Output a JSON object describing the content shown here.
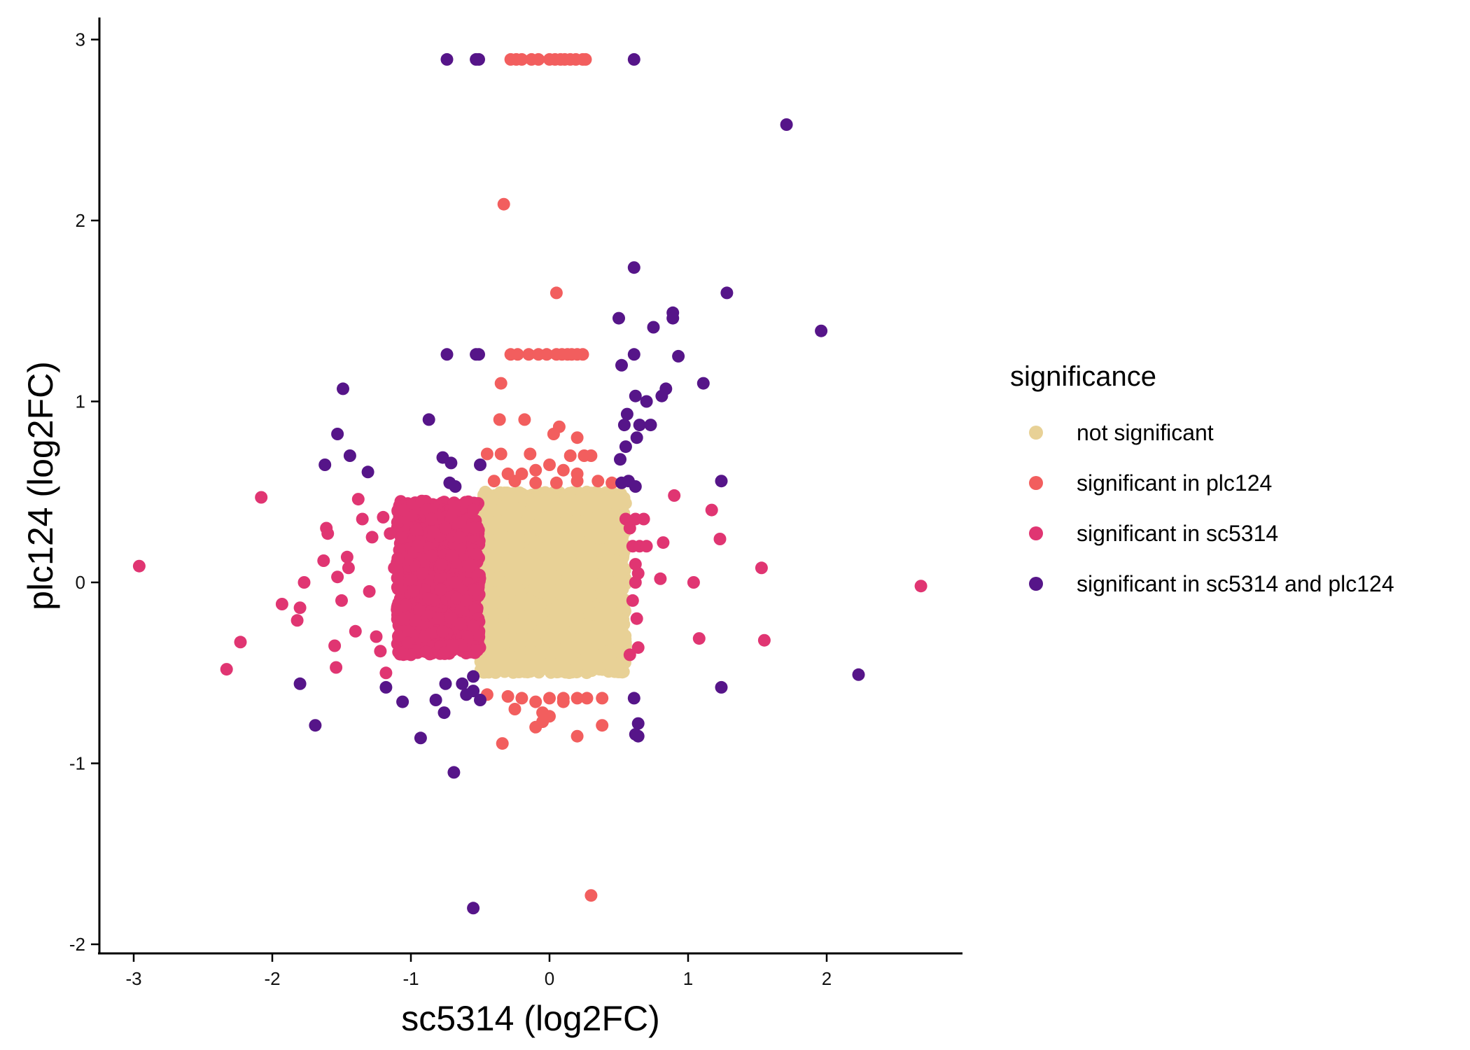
{
  "chart_data": {
    "type": "scatter",
    "xlabel": "sc5314 (log2FC)",
    "ylabel": "plc124 (log2FC)",
    "xlim": [
      -3.25,
      3.0
    ],
    "ylim": [
      -2.05,
      3.12
    ],
    "x_ticks": [
      -3,
      -2,
      -1,
      0,
      1,
      2
    ],
    "y_ticks": [
      -2,
      -1,
      0,
      1,
      2,
      3
    ],
    "x_tick_labels": [
      "-3",
      "-2",
      "-1",
      "0",
      "1",
      "2"
    ],
    "y_tick_labels": [
      "-2",
      "-1",
      "0",
      "1",
      "2",
      "3"
    ],
    "grid": false,
    "legend": {
      "title": "significance",
      "position": "right"
    },
    "series": [
      {
        "name": "not significant",
        "color": "#E8D196",
        "dense_region": {
          "x": [
            -0.5,
            0.55
          ],
          "y": [
            -0.5,
            0.5
          ]
        },
        "points": [
          [
            0.0,
            0.0
          ],
          [
            0.1,
            0.2
          ],
          [
            -0.2,
            -0.3
          ],
          [
            0.3,
            0.35
          ],
          [
            0.45,
            0.0
          ],
          [
            -0.4,
            0.4
          ],
          [
            0.2,
            -0.45
          ],
          [
            -0.3,
            -0.1
          ],
          [
            0.35,
            -0.3
          ],
          [
            0.4,
            -0.3
          ],
          [
            0.36,
            -0.48
          ],
          [
            0.15,
            -0.49
          ],
          [
            -0.45,
            0.47
          ],
          [
            0.5,
            0.44
          ],
          [
            0.5,
            -0.2
          ],
          [
            -0.1,
            0.1
          ],
          [
            0.05,
            -0.2
          ],
          [
            -0.35,
            0.2
          ]
        ]
      },
      {
        "name": "significant in plc124",
        "color": "#F25E5E",
        "points": [
          [
            -0.28,
            2.89
          ],
          [
            -0.24,
            2.89
          ],
          [
            -0.2,
            2.89
          ],
          [
            -0.13,
            2.89
          ],
          [
            -0.08,
            2.89
          ],
          [
            0.0,
            2.89
          ],
          [
            0.04,
            2.89
          ],
          [
            0.08,
            2.89
          ],
          [
            0.11,
            2.89
          ],
          [
            0.15,
            2.89
          ],
          [
            0.19,
            2.89
          ],
          [
            0.24,
            2.89
          ],
          [
            0.26,
            2.89
          ],
          [
            -0.33,
            2.09
          ],
          [
            0.05,
            1.6
          ],
          [
            -0.28,
            1.26
          ],
          [
            -0.23,
            1.26
          ],
          [
            -0.15,
            1.26
          ],
          [
            -0.08,
            1.26
          ],
          [
            -0.02,
            1.26
          ],
          [
            0.05,
            1.26
          ],
          [
            0.09,
            1.26
          ],
          [
            0.13,
            1.26
          ],
          [
            0.16,
            1.26
          ],
          [
            0.2,
            1.26
          ],
          [
            0.24,
            1.26
          ],
          [
            -0.35,
            1.1
          ],
          [
            -0.36,
            0.9
          ],
          [
            -0.18,
            0.9
          ],
          [
            0.07,
            0.86
          ],
          [
            0.03,
            0.82
          ],
          [
            0.2,
            0.8
          ],
          [
            -0.45,
            0.71
          ],
          [
            -0.35,
            0.71
          ],
          [
            -0.14,
            0.71
          ],
          [
            0.15,
            0.7
          ],
          [
            0.25,
            0.7
          ],
          [
            0.3,
            0.7
          ],
          [
            -0.3,
            0.6
          ],
          [
            -0.2,
            0.6
          ],
          [
            -0.1,
            0.62
          ],
          [
            0.0,
            0.65
          ],
          [
            0.1,
            0.62
          ],
          [
            0.2,
            0.6
          ],
          [
            -0.4,
            0.56
          ],
          [
            -0.25,
            0.56
          ],
          [
            -0.1,
            0.55
          ],
          [
            0.05,
            0.55
          ],
          [
            0.2,
            0.56
          ],
          [
            0.35,
            0.56
          ],
          [
            0.45,
            0.55
          ],
          [
            -0.45,
            -0.62
          ],
          [
            -0.3,
            -0.63
          ],
          [
            -0.2,
            -0.64
          ],
          [
            -0.1,
            -0.66
          ],
          [
            0.0,
            -0.64
          ],
          [
            0.1,
            -0.64
          ],
          [
            0.2,
            -0.64
          ],
          [
            0.27,
            -0.64
          ],
          [
            0.38,
            -0.64
          ],
          [
            -0.25,
            -0.7
          ],
          [
            -0.05,
            -0.72
          ],
          [
            0.1,
            -0.66
          ],
          [
            -0.05,
            -0.77
          ],
          [
            0.0,
            -0.74
          ],
          [
            -0.34,
            -0.89
          ],
          [
            0.2,
            -0.85
          ],
          [
            0.38,
            -0.79
          ],
          [
            -0.1,
            -0.8
          ],
          [
            0.3,
            -1.73
          ]
        ]
      },
      {
        "name": "significant in sc5314",
        "color": "#E03572",
        "dense_region": {
          "x": [
            -1.1,
            -0.5
          ],
          "y": [
            -0.4,
            0.45
          ]
        },
        "points": [
          [
            -2.96,
            0.09
          ],
          [
            -2.08,
            0.47
          ],
          [
            -2.33,
            -0.48
          ],
          [
            -2.23,
            -0.33
          ],
          [
            -1.93,
            -0.12
          ],
          [
            -1.82,
            -0.21
          ],
          [
            -1.8,
            -0.14
          ],
          [
            -1.77,
            0.0
          ],
          [
            -1.63,
            0.12
          ],
          [
            -1.61,
            0.3
          ],
          [
            -1.6,
            0.27
          ],
          [
            -1.55,
            -0.35
          ],
          [
            -1.54,
            -0.47
          ],
          [
            -1.53,
            0.03
          ],
          [
            -1.5,
            -0.1
          ],
          [
            -1.46,
            0.14
          ],
          [
            -1.45,
            0.08
          ],
          [
            -1.4,
            -0.27
          ],
          [
            -1.38,
            0.46
          ],
          [
            -1.35,
            0.35
          ],
          [
            -1.3,
            -0.05
          ],
          [
            -1.28,
            0.25
          ],
          [
            -1.25,
            -0.3
          ],
          [
            -1.22,
            -0.38
          ],
          [
            -1.2,
            0.36
          ],
          [
            -1.18,
            -0.5
          ],
          [
            -1.15,
            0.27
          ],
          [
            -1.12,
            0.08
          ],
          [
            -1.1,
            -0.15
          ],
          [
            -1.05,
            0.4
          ],
          [
            -1.0,
            -0.4
          ],
          [
            -0.95,
            0.2
          ],
          [
            -0.9,
            -0.3
          ],
          [
            -0.85,
            0.35
          ],
          [
            -0.8,
            -0.2
          ],
          [
            -0.75,
            0.3
          ],
          [
            -0.7,
            -0.35
          ],
          [
            -0.65,
            0.25
          ],
          [
            -0.6,
            -0.1
          ],
          [
            -0.55,
            0.4
          ],
          [
            -0.87,
            -0.09
          ],
          [
            -0.78,
            0.1
          ],
          [
            -0.92,
            0.05
          ],
          [
            -0.68,
            0.0
          ],
          [
            -0.98,
            -0.05
          ],
          [
            0.55,
            0.35
          ],
          [
            0.58,
            0.3
          ],
          [
            0.6,
            0.2
          ],
          [
            0.62,
            0.1
          ],
          [
            0.62,
            0.0
          ],
          [
            0.6,
            -0.1
          ],
          [
            0.63,
            -0.2
          ],
          [
            0.58,
            -0.4
          ],
          [
            0.62,
            0.35
          ],
          [
            0.64,
            0.05
          ],
          [
            0.65,
            0.2
          ],
          [
            0.68,
            0.35
          ],
          [
            0.7,
            0.2
          ],
          [
            0.8,
            0.02
          ],
          [
            0.82,
            0.22
          ],
          [
            0.9,
            0.48
          ],
          [
            1.04,
            0.0
          ],
          [
            1.08,
            -0.31
          ],
          [
            1.17,
            0.4
          ],
          [
            1.23,
            0.24
          ],
          [
            1.53,
            0.08
          ],
          [
            1.55,
            -0.32
          ],
          [
            2.68,
            -0.02
          ],
          [
            0.64,
            -0.36
          ]
        ]
      },
      {
        "name": "significant in sc5314 and plc124",
        "color": "#561589",
        "points": [
          [
            -0.74,
            2.89
          ],
          [
            -0.53,
            2.89
          ],
          [
            -0.51,
            2.89
          ],
          [
            0.61,
            2.89
          ],
          [
            1.71,
            2.53
          ],
          [
            0.61,
            1.74
          ],
          [
            1.28,
            1.6
          ],
          [
            0.89,
            1.49
          ],
          [
            0.89,
            1.46
          ],
          [
            0.5,
            1.46
          ],
          [
            1.96,
            1.39
          ],
          [
            0.75,
            1.41
          ],
          [
            -0.74,
            1.26
          ],
          [
            -0.53,
            1.26
          ],
          [
            -0.51,
            1.26
          ],
          [
            0.61,
            1.26
          ],
          [
            0.93,
            1.25
          ],
          [
            0.52,
            1.2
          ],
          [
            1.11,
            1.1
          ],
          [
            0.84,
            1.07
          ],
          [
            0.81,
            1.03
          ],
          [
            0.62,
            1.03
          ],
          [
            0.7,
            1.0
          ],
          [
            -1.49,
            1.07
          ],
          [
            -0.87,
            0.9
          ],
          [
            0.56,
            0.93
          ],
          [
            0.65,
            0.87
          ],
          [
            0.73,
            0.87
          ],
          [
            0.54,
            0.87
          ],
          [
            0.63,
            0.8
          ],
          [
            0.55,
            0.75
          ],
          [
            -1.53,
            0.82
          ],
          [
            -1.44,
            0.7
          ],
          [
            -1.62,
            0.65
          ],
          [
            -1.31,
            0.61
          ],
          [
            -0.77,
            0.69
          ],
          [
            -0.71,
            0.66
          ],
          [
            -0.5,
            0.65
          ],
          [
            0.51,
            0.68
          ],
          [
            -0.72,
            0.55
          ],
          [
            -0.68,
            0.53
          ],
          [
            0.52,
            0.55
          ],
          [
            0.57,
            0.56
          ],
          [
            0.62,
            0.53
          ],
          [
            1.24,
            0.56
          ],
          [
            -0.55,
            -0.52
          ],
          [
            -0.63,
            -0.56
          ],
          [
            -0.75,
            -0.56
          ],
          [
            -0.55,
            -0.6
          ],
          [
            -0.6,
            -0.62
          ],
          [
            -0.82,
            -0.65
          ],
          [
            -0.76,
            -0.72
          ],
          [
            -1.8,
            -0.56
          ],
          [
            -1.69,
            -0.79
          ],
          [
            -1.18,
            -0.58
          ],
          [
            -1.06,
            -0.66
          ],
          [
            -0.93,
            -0.86
          ],
          [
            -0.69,
            -1.05
          ],
          [
            -0.55,
            -1.8
          ],
          [
            0.61,
            -0.64
          ],
          [
            0.64,
            -0.78
          ],
          [
            0.62,
            -0.84
          ],
          [
            0.64,
            -0.85
          ],
          [
            1.24,
            -0.58
          ],
          [
            2.23,
            -0.51
          ],
          [
            -0.5,
            -0.65
          ]
        ]
      }
    ]
  }
}
